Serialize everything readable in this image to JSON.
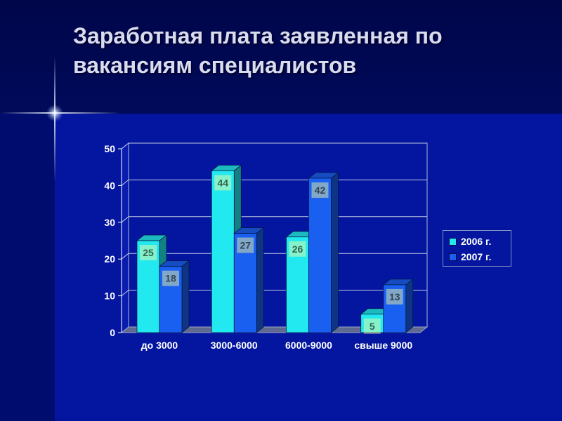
{
  "title": "Заработная плата заявленная по вакансиям специалистов",
  "chart_data": {
    "type": "bar",
    "categories": [
      "до 3000",
      "3000-6000",
      "6000-9000",
      "свыше 9000"
    ],
    "series": [
      {
        "name": "2006 г.",
        "values": [
          25,
          44,
          26,
          5
        ],
        "color": "#22e8f0"
      },
      {
        "name": "2007 г.",
        "values": [
          18,
          27,
          42,
          13
        ],
        "color": "#1a60f0"
      }
    ],
    "y_ticks": [
      "0",
      "10",
      "20",
      "30",
      "40",
      "50"
    ],
    "ylim": [
      0,
      50
    ],
    "grid": true,
    "legend_position": "right",
    "data_labels": true,
    "colors": {
      "label_bg": "#ffff99",
      "label_text": "#000000"
    }
  }
}
